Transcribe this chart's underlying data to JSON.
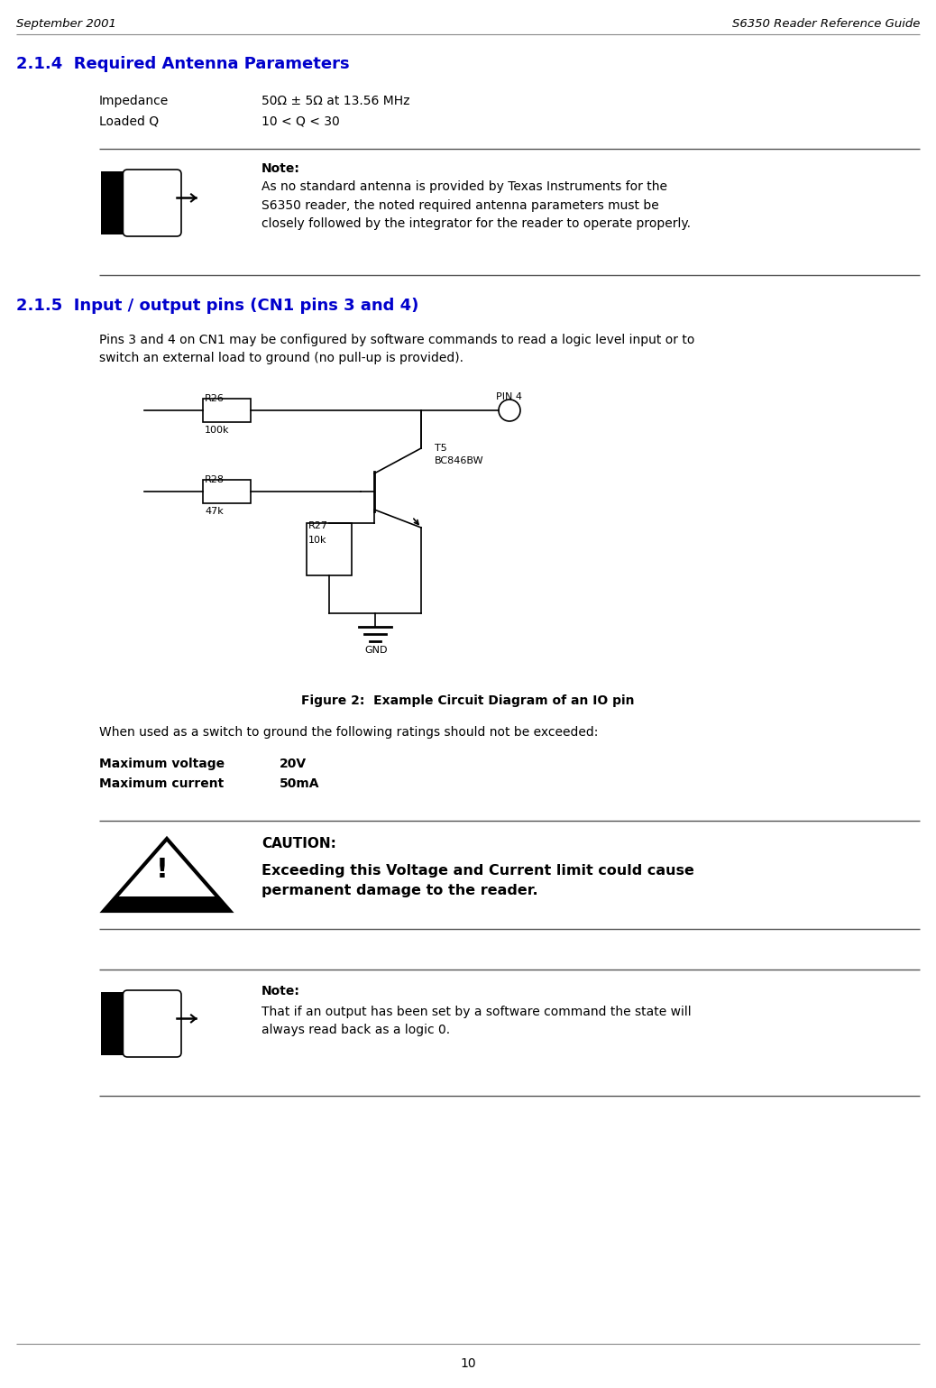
{
  "header_left": "September 2001",
  "header_right": "S6350 Reader Reference Guide",
  "section_214_title": "2.1.4  Required Antenna Parameters",
  "param1_label": "Impedance",
  "param1_value": "50Ω ± 5Ω at 13.56 MHz",
  "param2_label": "Loaded Q",
  "param2_value": "10 < Q < 30",
  "note1_title": "Note:",
  "note1_text": "As no standard antenna is provided by Texas Instruments for the\nS6350 reader, the noted required antenna parameters must be\nclosely followed by the integrator for the reader to operate properly.",
  "section_215_title": "2.1.5  Input / output pins (CN1 pins 3 and 4)",
  "section_215_body": "Pins 3 and 4 on CN1 may be configured by software commands to read a logic level input or to\nswitch an external load to ground (no pull-up is provided).",
  "figure_caption": "Figure 2:  Example Circuit Diagram of an IO pin",
  "switch_text": "When used as a switch to ground the following ratings should not be exceeded:",
  "max_v_label": "Maximum voltage",
  "max_v_value": "20V",
  "max_i_label": "Maximum current",
  "max_i_value": "50mA",
  "caution_title": "CAUTION:",
  "caution_text": "Exceeding this Voltage and Current limit could cause\npermanent damage to the reader.",
  "note2_title": "Note:",
  "note2_text": "That if an output has been set by a software command the state will\nalways read back as a logic 0.",
  "page_number": "10",
  "title_color": "#0000CC",
  "header_color": "#000000",
  "bg_color": "#ffffff",
  "text_color": "#000000",
  "line_color": "#555555",
  "header_line_color": "#888888"
}
